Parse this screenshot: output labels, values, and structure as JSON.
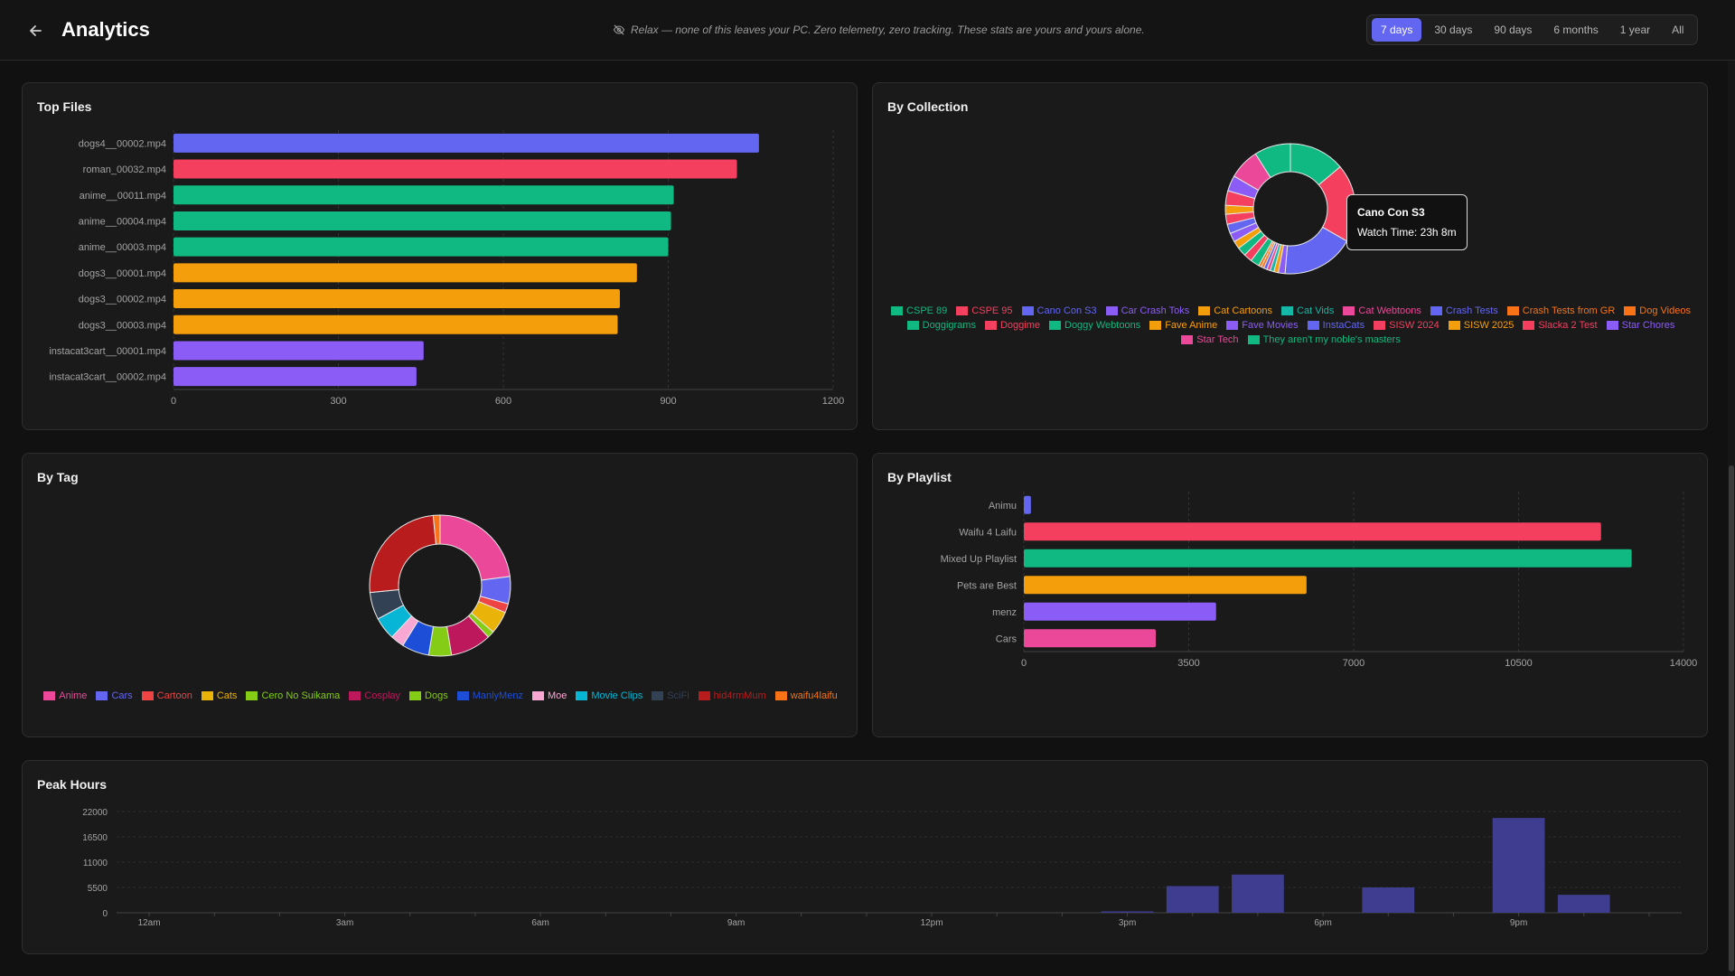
{
  "header": {
    "title": "Analytics",
    "notice": "Relax — none of this leaves your PC. Zero telemetry, zero tracking. These stats are yours and yours alone.",
    "ranges": [
      "7 days",
      "30 days",
      "90 days",
      "6 months",
      "1 year",
      "All"
    ],
    "active_range": "7 days"
  },
  "colors": {
    "indigo": "#6366f1",
    "rose": "#f43f5e",
    "emerald": "#10b981",
    "amber": "#f59e0b",
    "violet": "#8b5cf6",
    "pink": "#ec4899",
    "peak_bar": "#3f3d8f"
  },
  "top_files": {
    "title": "Top Files",
    "chart_data": {
      "type": "bar",
      "orientation": "horizontal",
      "categories": [
        "dogs4__00002.mp4",
        "roman_00032.mp4",
        "anime__00011.mp4",
        "anime__00004.mp4",
        "anime__00003.mp4",
        "dogs3__00001.mp4",
        "dogs3__00002.mp4",
        "dogs3__00003.mp4",
        "instacat3cart__00001.mp4",
        "instacat3cart__00002.mp4"
      ],
      "values": [
        1065,
        1025,
        910,
        905,
        900,
        843,
        812,
        808,
        455,
        442
      ],
      "bar_colors": [
        "#6366f1",
        "#f43f5e",
        "#10b981",
        "#10b981",
        "#10b981",
        "#f59e0b",
        "#f59e0b",
        "#f59e0b",
        "#8b5cf6",
        "#8b5cf6"
      ],
      "xticks": [
        "0",
        "300",
        "600",
        "900",
        "1200"
      ],
      "xlim": [
        0,
        1200
      ]
    }
  },
  "by_collection": {
    "title": "By Collection",
    "tooltip": {
      "title": "Cano Con S3",
      "line": "Watch Time: 23h 8m"
    },
    "chart_data": {
      "type": "pie",
      "donut": true,
      "labels": [
        "CSPE 89",
        "CSPE 95",
        "Cano Con S3",
        "Car Crash Toks",
        "Cat Cartoons",
        "Cat Vids",
        "Cat Webtoons",
        "Crash Tests",
        "Crash Tests from GR",
        "Dog Videos",
        "Doggigrams",
        "Doggime",
        "Doggy Webtoons",
        "Fave Anime",
        "Fave Movies",
        "InstaCats",
        "SISW 2024",
        "SISW 2025",
        "Slacka 2 Test",
        "Star Chores",
        "Star Tech",
        "They aren't my noble's masters"
      ],
      "colors": [
        "#10b981",
        "#f43f5e",
        "#6366f1",
        "#8b5cf6",
        "#f59e0b",
        "#14b8a6",
        "#ec4899",
        "#6366f1",
        "#f97316",
        "#f97316",
        "#10b981",
        "#f43f5e",
        "#10b981",
        "#f59e0b",
        "#8b5cf6",
        "#6366f1",
        "#f43f5e",
        "#f59e0b",
        "#f43f5e",
        "#8b5cf6",
        "#ec4899",
        "#10b981"
      ],
      "values": [
        10,
        14,
        13,
        1.2,
        0.8,
        0.7,
        0.6,
        0.6,
        0.5,
        0.5,
        1.6,
        1.5,
        1.6,
        1.4,
        1.6,
        1.7,
        1.8,
        1.6,
        2.6,
        2.8,
        5.5,
        6.5
      ]
    }
  },
  "by_tag": {
    "title": "By Tag",
    "chart_data": {
      "type": "pie",
      "donut": true,
      "labels": [
        "Anime",
        "Cars",
        "Cartoon",
        "Cats",
        "Cero No Suikama",
        "Cosplay",
        "Dogs",
        "ManlyMenz",
        "Moe",
        "Movie Clips",
        "SciFi",
        "hid4rmMum",
        "waifu4laifu"
      ],
      "colors": [
        "#ec4899",
        "#6366f1",
        "#ef4444",
        "#eab308",
        "#84cc16",
        "#be185d",
        "#84cc16",
        "#1d4ed8",
        "#f9a8d4",
        "#06b6d4",
        "#334155",
        "#b91c1c",
        "#f97316"
      ],
      "values": [
        22,
        6,
        2,
        5,
        1.5,
        9,
        5,
        6,
        3,
        5,
        6,
        24,
        1.5
      ]
    }
  },
  "by_playlist": {
    "title": "By Playlist",
    "chart_data": {
      "type": "bar",
      "orientation": "horizontal",
      "categories": [
        "Animu",
        "Waifu 4 Laifu",
        "Mixed Up Playlist",
        "Pets are Best",
        "menz",
        "Cars"
      ],
      "values": [
        150,
        12250,
        12900,
        6000,
        4080,
        2800
      ],
      "bar_colors": [
        "#6366f1",
        "#f43f5e",
        "#10b981",
        "#f59e0b",
        "#8b5cf6",
        "#ec4899"
      ],
      "xticks": [
        "0",
        "3500",
        "7000",
        "10500",
        "14000"
      ],
      "xlim": [
        0,
        14000
      ]
    }
  },
  "peak_hours": {
    "title": "Peak Hours",
    "chart_data": {
      "type": "bar",
      "categories": [
        "12am",
        "1am",
        "2am",
        "3am",
        "4am",
        "5am",
        "6am",
        "7am",
        "8am",
        "9am",
        "10am",
        "11am",
        "12pm",
        "1pm",
        "2pm",
        "3pm",
        "4pm",
        "5pm",
        "6pm",
        "7pm",
        "8pm",
        "9pm",
        "10pm",
        "11pm"
      ],
      "values": [
        0,
        0,
        0,
        0,
        0,
        0,
        0,
        0,
        0,
        0,
        0,
        0,
        0,
        0,
        0,
        300,
        5800,
        8300,
        0,
        5500,
        0,
        20600,
        3900,
        0
      ],
      "xticks": [
        "12am",
        "3am",
        "6am",
        "9am",
        "12pm",
        "3pm",
        "6pm",
        "9pm"
      ],
      "yticks": [
        "0",
        "5500",
        "11000",
        "16500",
        "22000"
      ],
      "ylim": [
        0,
        22000
      ]
    }
  }
}
